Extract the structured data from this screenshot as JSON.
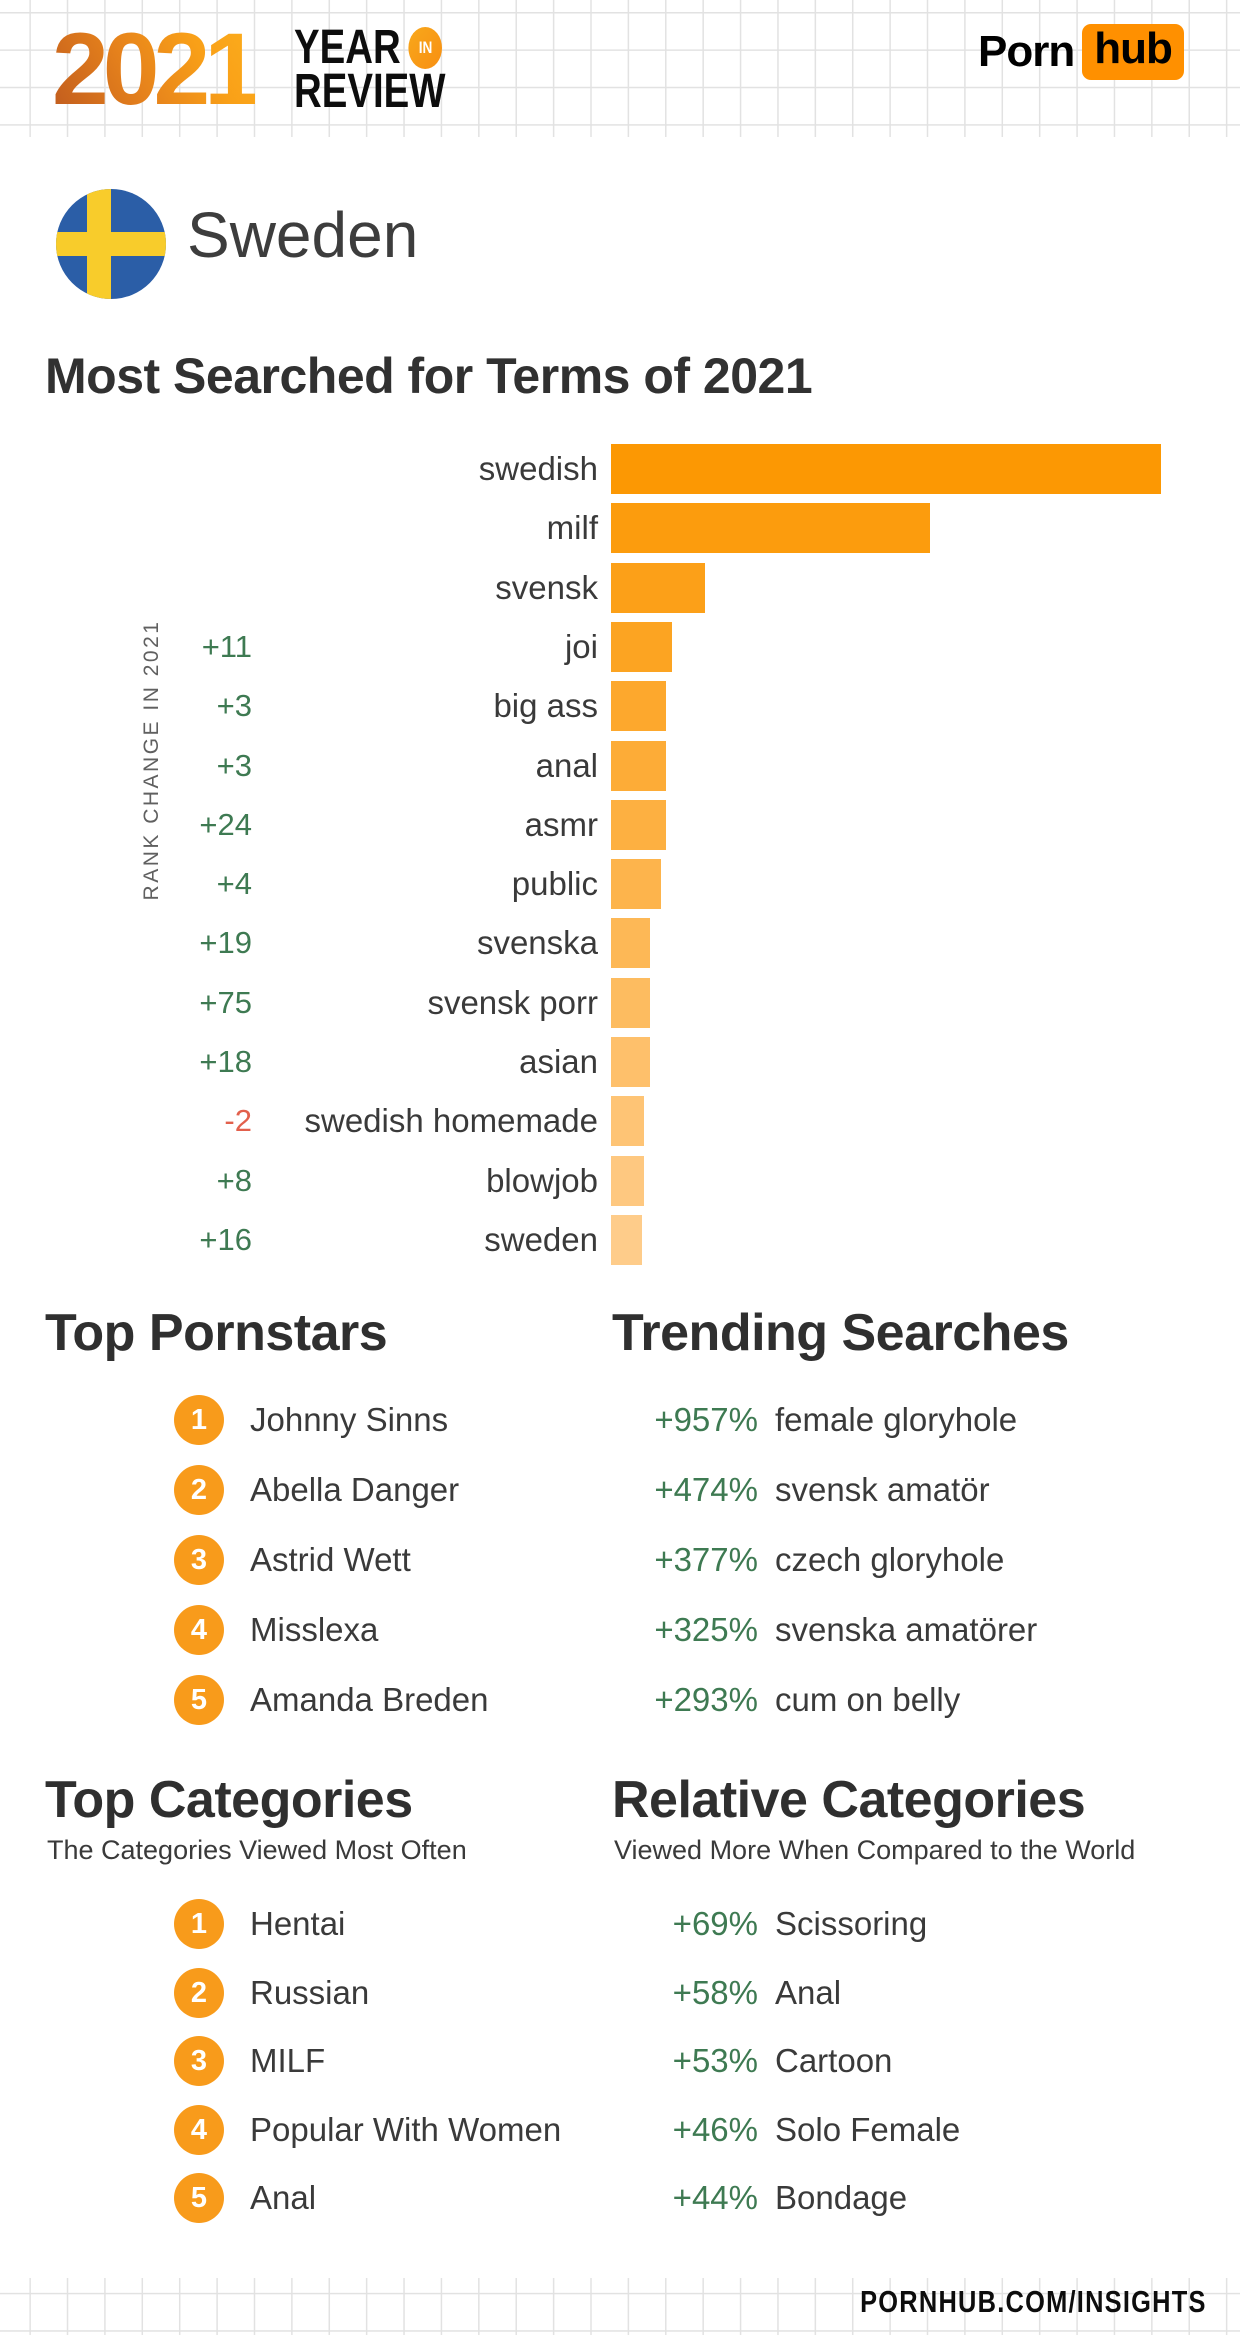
{
  "header": {
    "year_logo": {
      "year": "2021",
      "line1": "YEAR",
      "badge": "IN",
      "line2": "REVIEW"
    },
    "brand": {
      "part1": "Porn",
      "part2": "hub"
    }
  },
  "country": {
    "name": "Sweden",
    "flag": "sweden-flag"
  },
  "page_title": "Most Searched for Terms of 2021",
  "chart_data": {
    "type": "bar",
    "orientation": "horizontal",
    "title": "Most Searched for Terms of 2021",
    "axis_label": "RANK CHANGE IN 2021",
    "categories": [
      "swedish",
      "milf",
      "svensk",
      "joi",
      "big ass",
      "anal",
      "asmr",
      "public",
      "svenska",
      "svensk porr",
      "asian",
      "swedish homemade",
      "blowjob",
      "sweden"
    ],
    "values": [
      100,
      58,
      17,
      11,
      10,
      10,
      10,
      9,
      7,
      7,
      7,
      6,
      6,
      5.6
    ],
    "values_note": "relative bar length, % of top term (no numeric axis shown)",
    "rank_changes": [
      "",
      "",
      "",
      "+11",
      "+3",
      "+3",
      "+24",
      "+4",
      "+19",
      "+75",
      "+18",
      "-2",
      "+8",
      "+16"
    ],
    "bar_color_start": "#FC9803",
    "bar_color_end": "#FECC8A",
    "positive_color": "#3E7A52",
    "negative_color": "#E2604C",
    "legend_position": "none",
    "grid": false
  },
  "sections": {
    "pornstars": {
      "title": "Top Pornstars",
      "items": [
        {
          "rank": "1",
          "name": "Johnny Sinns"
        },
        {
          "rank": "2",
          "name": "Abella Danger"
        },
        {
          "rank": "3",
          "name": "Astrid Wett"
        },
        {
          "rank": "4",
          "name": "Misslexa"
        },
        {
          "rank": "5",
          "name": "Amanda Breden"
        }
      ]
    },
    "trending": {
      "title": "Trending Searches",
      "items": [
        {
          "pct": "+957%",
          "term": "female gloryhole"
        },
        {
          "pct": "+474%",
          "term": "svensk amatör"
        },
        {
          "pct": "+377%",
          "term": "czech gloryhole"
        },
        {
          "pct": "+325%",
          "term": "svenska amatörer"
        },
        {
          "pct": "+293%",
          "term": "cum on belly"
        }
      ]
    },
    "top_categories": {
      "title": "Top Categories",
      "subtitle": "The Categories Viewed Most Often",
      "items": [
        {
          "rank": "1",
          "name": "Hentai"
        },
        {
          "rank": "2",
          "name": "Russian"
        },
        {
          "rank": "3",
          "name": "MILF"
        },
        {
          "rank": "4",
          "name": "Popular With Women"
        },
        {
          "rank": "5",
          "name": "Anal"
        }
      ]
    },
    "relative_categories": {
      "title": "Relative Categories",
      "subtitle": "Viewed More When Compared to the World",
      "items": [
        {
          "pct": "+69%",
          "term": "Scissoring"
        },
        {
          "pct": "+58%",
          "term": "Anal"
        },
        {
          "pct": "+53%",
          "term": "Cartoon"
        },
        {
          "pct": "+46%",
          "term": "Solo Female"
        },
        {
          "pct": "+44%",
          "term": "Bondage"
        }
      ]
    }
  },
  "footer": {
    "url": "PORNHUB.COM/INSIGHTS"
  },
  "colors": {
    "accent": "#FF9000",
    "circle_orange": "#F89B1B",
    "text_dark": "#333333",
    "green": "#3E7A52",
    "red": "#E2604C",
    "flag_blue": "#2B5EA7",
    "flag_yellow": "#F8CC2B"
  }
}
